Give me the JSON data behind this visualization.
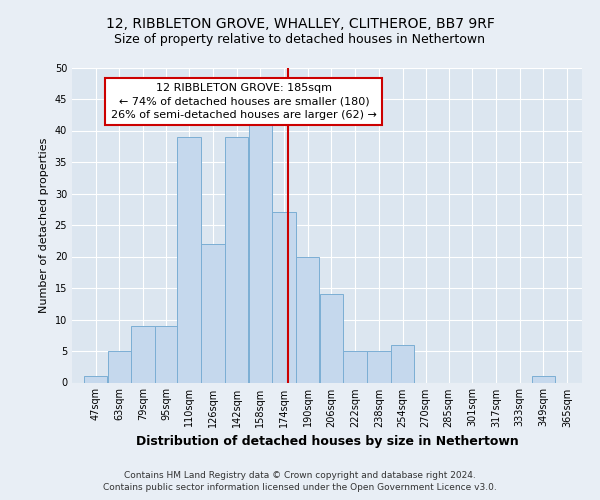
{
  "title1": "12, RIBBLETON GROVE, WHALLEY, CLITHEROE, BB7 9RF",
  "title2": "Size of property relative to detached houses in Nethertown",
  "xlabel": "Distribution of detached houses by size in Nethertown",
  "ylabel": "Number of detached properties",
  "annotation_line1": "12 RIBBLETON GROVE: 185sqm",
  "annotation_line2": "← 74% of detached houses are smaller (180)",
  "annotation_line3": "26% of semi-detached houses are larger (62) →",
  "footer1": "Contains HM Land Registry data © Crown copyright and database right 2024.",
  "footer2": "Contains public sector information licensed under the Open Government Licence v3.0.",
  "bar_left_edges": [
    47,
    63,
    79,
    95,
    110,
    126,
    142,
    158,
    174,
    190,
    206,
    222,
    238,
    254,
    270,
    285,
    301,
    317,
    333,
    349,
    365
  ],
  "bar_widths": [
    16,
    16,
    16,
    15,
    16,
    16,
    16,
    16,
    16,
    16,
    16,
    16,
    16,
    16,
    15,
    16,
    16,
    16,
    16,
    16,
    16
  ],
  "bar_heights": [
    1,
    5,
    9,
    9,
    39,
    22,
    39,
    41,
    27,
    20,
    14,
    5,
    5,
    6,
    0,
    0,
    0,
    0,
    0,
    1,
    0
  ],
  "bar_color": "#c5d8ed",
  "bar_edgecolor": "#7baed4",
  "vline_x": 185,
  "vline_color": "#cc0000",
  "ylim": [
    0,
    50
  ],
  "yticks": [
    0,
    5,
    10,
    15,
    20,
    25,
    30,
    35,
    40,
    45,
    50
  ],
  "bg_color": "#e8eef5",
  "plot_bg_color": "#dce6f0",
  "annotation_box_edgecolor": "#cc0000",
  "title1_fontsize": 10,
  "title2_fontsize": 9,
  "xlabel_fontsize": 9,
  "ylabel_fontsize": 8,
  "tick_fontsize": 7,
  "tick_labels": [
    "47sqm",
    "63sqm",
    "79sqm",
    "95sqm",
    "110sqm",
    "126sqm",
    "142sqm",
    "158sqm",
    "174sqm",
    "190sqm",
    "206sqm",
    "222sqm",
    "238sqm",
    "254sqm",
    "270sqm",
    "285sqm",
    "301sqm",
    "317sqm",
    "333sqm",
    "349sqm",
    "365sqm"
  ],
  "annotation_fontsize": 8,
  "footer_fontsize": 6.5,
  "xlim_left": 39,
  "xlim_right": 383
}
